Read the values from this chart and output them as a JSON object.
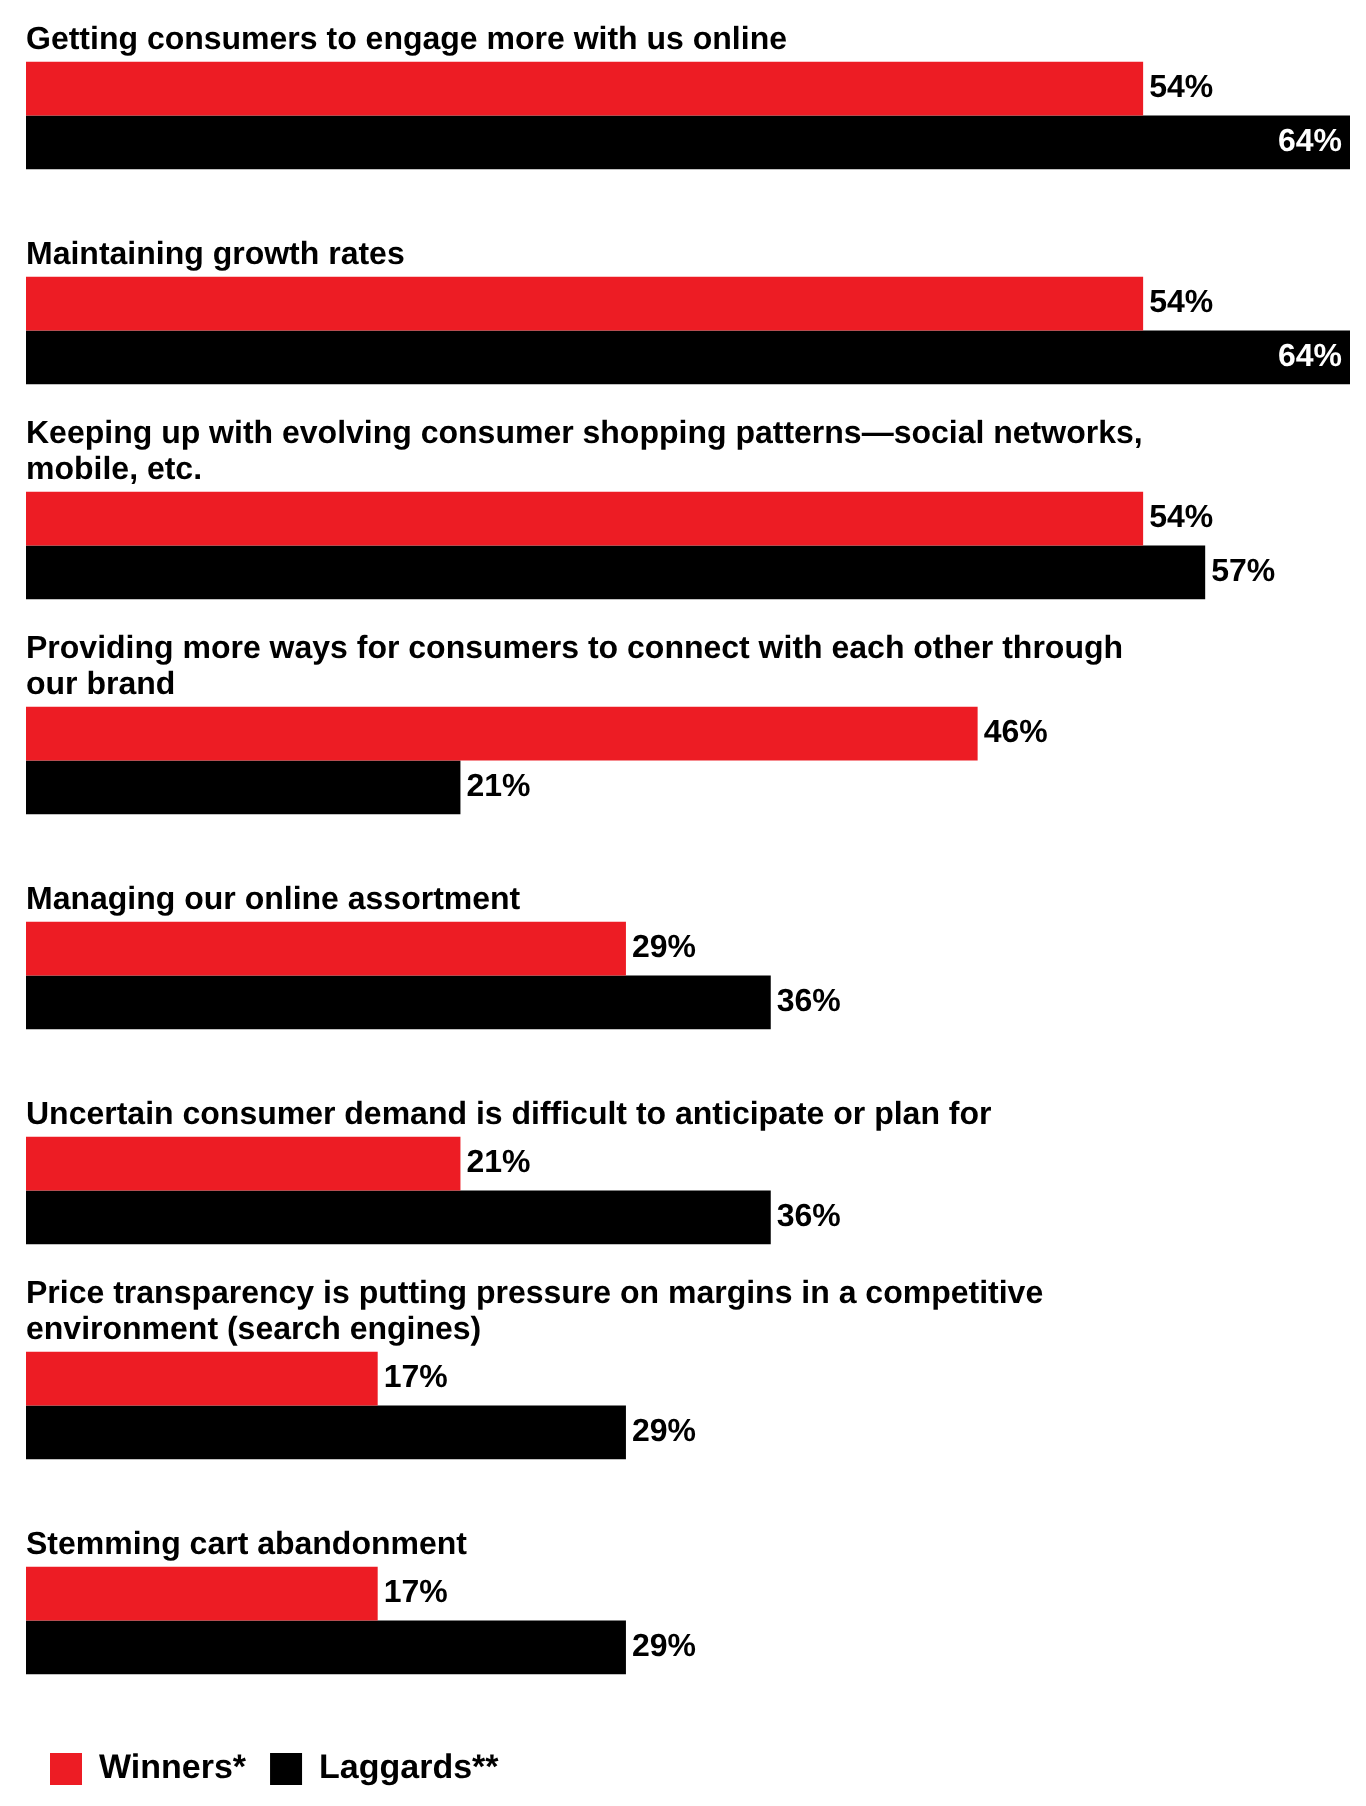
{
  "chart_data": {
    "type": "bar",
    "orientation": "horizontal",
    "categories": [
      "Getting consumers to engage more with us online",
      "Maintaining growth rates",
      "Keeping up with evolving consumer shopping patterns—social networks, mobile, etc.",
      "Providing more ways for consumers to connect with each other through our brand",
      "Managing our online assortment",
      "Uncertain consumer demand is difficult to anticipate or plan for",
      "Price transparency is putting pressure on margins in a competitive environment (search engines)",
      "Stemming cart abandonment"
    ],
    "series": [
      {
        "name": "Winners*",
        "color": "#ed1c24",
        "values": [
          54,
          54,
          54,
          46,
          29,
          21,
          17,
          17
        ],
        "value_labels": [
          "54%",
          "54%",
          "54%",
          "46%",
          "29%",
          "21%",
          "17%",
          "17%"
        ]
      },
      {
        "name": "Laggards**",
        "color": "#000000",
        "values": [
          64,
          64,
          57,
          21,
          36,
          36,
          29,
          29
        ],
        "value_labels": [
          "64%",
          "64%",
          "57%",
          "21%",
          "36%",
          "36%",
          "29%",
          "29%"
        ]
      }
    ],
    "legend": "bottom"
  }
}
